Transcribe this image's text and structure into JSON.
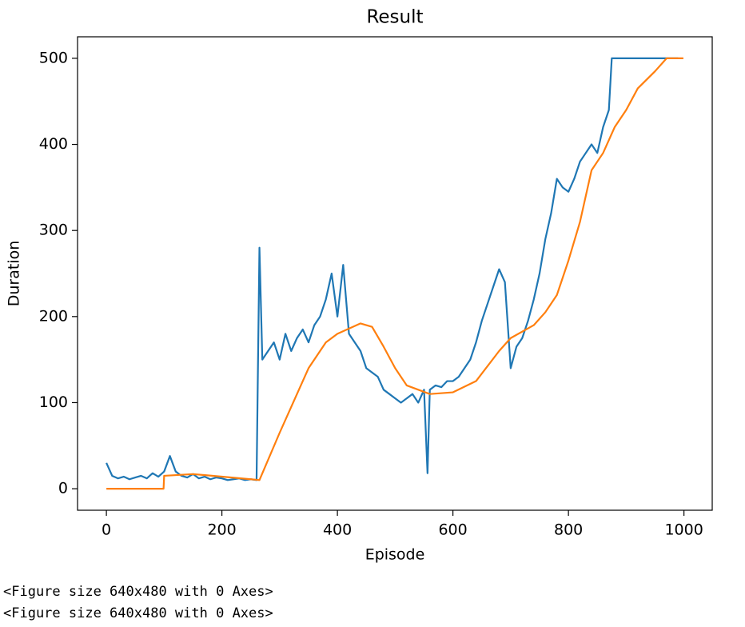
{
  "chart_data": {
    "type": "line",
    "title": "Result",
    "x_label": "Episode",
    "y_label": "Duration",
    "xlim": [
      -49.95,
      1048.95
    ],
    "ylim": [
      -25,
      525
    ],
    "xticks": [
      0,
      200,
      400,
      600,
      800,
      1000
    ],
    "yticks": [
      0,
      100,
      200,
      300,
      400,
      500
    ],
    "grid": false,
    "series": [
      {
        "color": "#1f77b4",
        "x": [
          0,
          10,
          20,
          30,
          40,
          50,
          60,
          70,
          80,
          90,
          100,
          110,
          120,
          130,
          140,
          150,
          160,
          170,
          180,
          190,
          200,
          210,
          220,
          230,
          240,
          250,
          260,
          265,
          270,
          280,
          290,
          300,
          310,
          320,
          330,
          340,
          350,
          360,
          370,
          380,
          390,
          400,
          410,
          420,
          430,
          440,
          450,
          460,
          470,
          480,
          490,
          500,
          510,
          520,
          530,
          540,
          550,
          556,
          560,
          570,
          580,
          590,
          600,
          610,
          620,
          630,
          640,
          650,
          660,
          670,
          680,
          690,
          700,
          710,
          720,
          730,
          740,
          750,
          760,
          770,
          780,
          790,
          800,
          810,
          820,
          830,
          840,
          850,
          860,
          870,
          875,
          880,
          900,
          950,
          990
        ],
        "values": [
          30,
          15,
          12,
          14,
          11,
          13,
          15,
          12,
          18,
          14,
          20,
          38,
          20,
          15,
          13,
          17,
          12,
          14,
          11,
          13,
          12,
          10,
          11,
          12,
          10,
          11,
          10,
          280,
          150,
          160,
          170,
          150,
          180,
          160,
          175,
          185,
          170,
          190,
          200,
          220,
          250,
          200,
          260,
          180,
          170,
          160,
          140,
          135,
          130,
          115,
          110,
          105,
          100,
          105,
          110,
          100,
          115,
          18,
          115,
          120,
          118,
          125,
          125,
          130,
          140,
          150,
          170,
          195,
          215,
          235,
          255,
          240,
          140,
          165,
          175,
          195,
          220,
          250,
          290,
          320,
          360,
          350,
          345,
          360,
          380,
          390,
          400,
          390,
          420,
          440,
          500,
          500,
          500,
          500,
          500
        ]
      },
      {
        "color": "#ff7f0e",
        "x": [
          0,
          99,
          100,
          150,
          200,
          250,
          265,
          300,
          350,
          380,
          400,
          440,
          460,
          480,
          500,
          520,
          560,
          600,
          640,
          680,
          700,
          740,
          760,
          780,
          800,
          820,
          840,
          860,
          880,
          900,
          920,
          950,
          970,
          999
        ],
        "values": [
          0,
          0,
          15,
          17,
          14,
          11,
          10,
          65,
          140,
          170,
          180,
          192,
          188,
          165,
          140,
          120,
          110,
          112,
          125,
          160,
          175,
          190,
          205,
          225,
          265,
          310,
          370,
          390,
          420,
          440,
          465,
          485,
          500,
          500
        ]
      }
    ]
  },
  "outputs": [
    "<Figure size 640x480 with 0 Axes>",
    "<Figure size 640x480 with 0 Axes>"
  ]
}
